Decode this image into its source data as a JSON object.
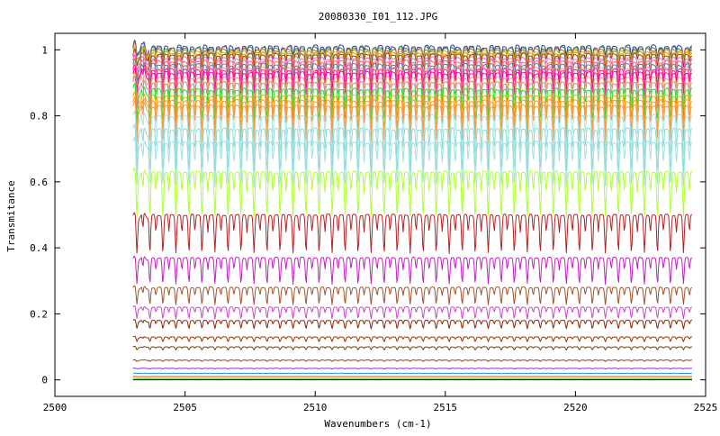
{
  "chart_data": {
    "type": "line",
    "title": "20080330_I01_112.JPG",
    "xlabel": "Wavenumbers (cm-1)",
    "ylabel": "Transmitance",
    "xlim": [
      2500,
      2525
    ],
    "ylim": [
      -0.05,
      1.05
    ],
    "x_ticks": [
      2500,
      2505,
      2510,
      2515,
      2520,
      2525
    ],
    "x_tick_labels": [
      "2500",
      "2505",
      "2510",
      "2515",
      "2520",
      "2525"
    ],
    "y_ticks": [
      0,
      0.2,
      0.4,
      0.6,
      0.8,
      1
    ],
    "y_tick_labels": [
      "0",
      "0.2",
      "0.4",
      "0.6",
      "0.8",
      "1"
    ],
    "grid": false,
    "legend": "none",
    "x_start": 2503.0,
    "x_end": 2524.5,
    "line_period_cm1": 0.5,
    "series": [
      {
        "baseline": 1.01,
        "color": "#3a3a8c"
      },
      {
        "baseline": 1.005,
        "color": "#2e8b57"
      },
      {
        "baseline": 1.0,
        "color": "#cd5c5c"
      },
      {
        "baseline": 0.995,
        "color": "#9acd32"
      },
      {
        "baseline": 0.99,
        "color": "#ff8c00"
      },
      {
        "baseline": 0.985,
        "color": "#8b4513"
      },
      {
        "baseline": 0.975,
        "color": "#da70d6"
      },
      {
        "baseline": 0.965,
        "color": "#ff6347"
      },
      {
        "baseline": 0.955,
        "color": "#4682b4"
      },
      {
        "baseline": 0.945,
        "color": "#ffa07a"
      },
      {
        "baseline": 0.94,
        "color": "#ff1493"
      },
      {
        "baseline": 0.93,
        "color": "#ff00aa"
      },
      {
        "baseline": 0.915,
        "color": "#f4a460"
      },
      {
        "baseline": 0.9,
        "color": "#bc8f8f"
      },
      {
        "baseline": 0.88,
        "color": "#22dd22"
      },
      {
        "baseline": 0.86,
        "color": "#ffa500"
      },
      {
        "baseline": 0.845,
        "color": "#ff9933"
      },
      {
        "baseline": 0.83,
        "color": "#ee9a49"
      },
      {
        "baseline": 0.8,
        "color": "#aae4e4"
      },
      {
        "baseline": 0.76,
        "color": "#8ed8d8"
      },
      {
        "baseline": 0.72,
        "color": "#a0e0e0"
      },
      {
        "baseline": 0.63,
        "color": "#adff2f"
      },
      {
        "baseline": 0.5,
        "color": "#b22222"
      },
      {
        "baseline": 0.37,
        "color": "#c020c0"
      },
      {
        "baseline": 0.28,
        "color": "#a0522d"
      },
      {
        "baseline": 0.22,
        "color": "#cc44cc"
      },
      {
        "baseline": 0.18,
        "color": "#8b2500"
      },
      {
        "baseline": 0.13,
        "color": "#9b3000"
      },
      {
        "baseline": 0.1,
        "color": "#7b3f00"
      },
      {
        "baseline": 0.06,
        "color": "#8b4513"
      },
      {
        "baseline": 0.035,
        "color": "#8a2be2"
      },
      {
        "baseline": 0.02,
        "color": "#1e90ff"
      },
      {
        "baseline": 0.01,
        "color": "#ff4500"
      },
      {
        "baseline": 0.004,
        "color": "#32cd32"
      },
      {
        "baseline": 0.0,
        "color": "#000000"
      }
    ]
  }
}
